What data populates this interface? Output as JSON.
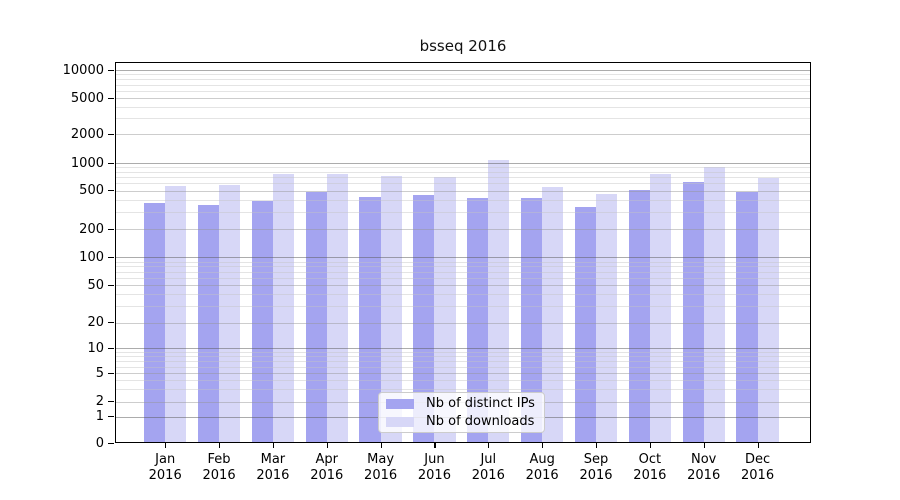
{
  "chart_data": {
    "type": "bar",
    "title": "bsseq 2016",
    "xlabel": "",
    "ylabel": "",
    "yscale": "log-like",
    "grid": true,
    "legend_position": "bottom-center-inside",
    "yticks": [
      0,
      1,
      2,
      5,
      10,
      20,
      50,
      100,
      200,
      500,
      1000,
      2000,
      5000,
      10000
    ],
    "ylim": [
      0,
      10000
    ],
    "categories": [
      "Jan 2016",
      "Feb 2016",
      "Mar 2016",
      "Apr 2016",
      "May 2016",
      "Jun 2016",
      "Jul 2016",
      "Aug 2016",
      "Sep 2016",
      "Oct 2016",
      "Nov 2016",
      "Dec 2016"
    ],
    "series": [
      {
        "name": "Nb of distinct IPs",
        "color": "#a4a4f0",
        "values": [
          375,
          360,
          390,
          490,
          435,
          455,
          420,
          420,
          340,
          510,
          620,
          490
        ]
      },
      {
        "name": "Nb of downloads",
        "color": "#d7d7f7",
        "values": [
          560,
          575,
          770,
          770,
          720,
          705,
          1090,
          545,
          465,
          765,
          900,
          690
        ]
      }
    ]
  },
  "colors": {
    "axis": "#000000",
    "grid_major": "#5a5a5a",
    "grid_minor": "#c4c4c4",
    "legend_border": "#cccccc"
  }
}
